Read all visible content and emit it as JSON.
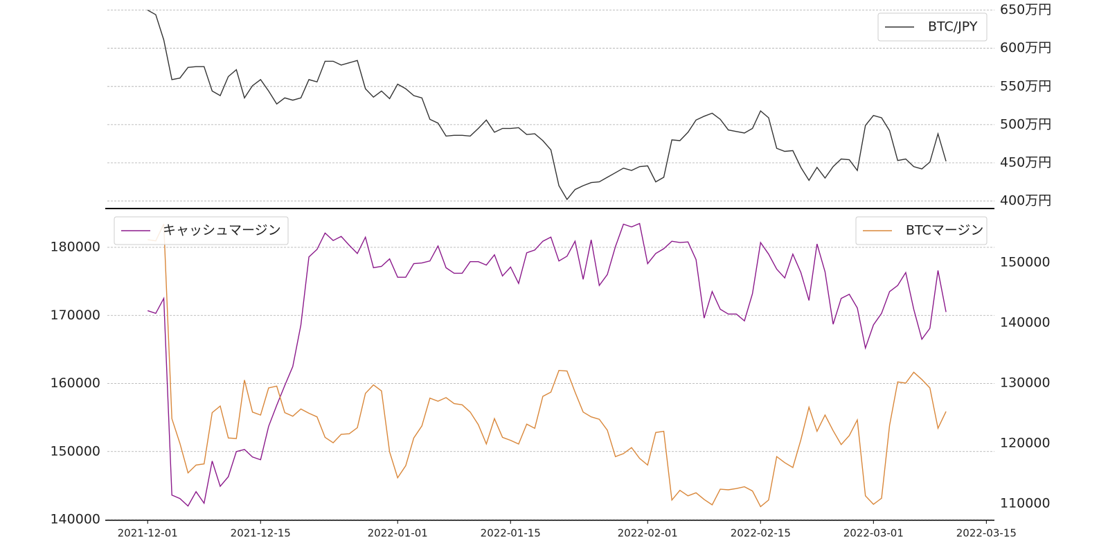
{
  "chart_data": [
    {
      "type": "line",
      "y_axis_side": "right",
      "grid": true,
      "legend": "upper right",
      "xlim": [
        "2021-11-26",
        "2022-03-16"
      ],
      "ylim": [
        391,
        656
      ],
      "yticks": [
        {
          "value": 400,
          "label": "400万円"
        },
        {
          "value": 450,
          "label": "450万円"
        },
        {
          "value": 500,
          "label": "500万円"
        },
        {
          "value": 550,
          "label": "550万円"
        },
        {
          "value": 600,
          "label": "600万円"
        },
        {
          "value": 650,
          "label": "650万円"
        }
      ],
      "x": [
        "2021-12-01",
        "2021-12-02",
        "2021-12-03",
        "2021-12-04",
        "2021-12-05",
        "2021-12-06",
        "2021-12-07",
        "2021-12-08",
        "2021-12-09",
        "2021-12-10",
        "2021-12-11",
        "2021-12-12",
        "2021-12-13",
        "2021-12-14",
        "2021-12-15",
        "2021-12-16",
        "2021-12-17",
        "2021-12-18",
        "2021-12-19",
        "2021-12-20",
        "2021-12-21",
        "2021-12-22",
        "2021-12-23",
        "2021-12-24",
        "2021-12-25",
        "2021-12-26",
        "2021-12-27",
        "2021-12-28",
        "2021-12-29",
        "2021-12-30",
        "2021-12-31",
        "2022-01-01",
        "2022-01-02",
        "2022-01-03",
        "2022-01-04",
        "2022-01-05",
        "2022-01-06",
        "2022-01-07",
        "2022-01-08",
        "2022-01-09",
        "2022-01-10",
        "2022-01-11",
        "2022-01-12",
        "2022-01-13",
        "2022-01-14",
        "2022-01-15",
        "2022-01-16",
        "2022-01-17",
        "2022-01-18",
        "2022-01-19",
        "2022-01-20",
        "2022-01-21",
        "2022-01-22",
        "2022-01-23",
        "2022-01-24",
        "2022-01-25",
        "2022-01-26",
        "2022-01-27",
        "2022-01-28",
        "2022-01-29",
        "2022-01-30",
        "2022-01-31",
        "2022-02-01",
        "2022-02-02",
        "2022-02-03",
        "2022-02-04",
        "2022-02-05",
        "2022-02-06",
        "2022-02-07",
        "2022-02-08",
        "2022-02-09",
        "2022-02-10",
        "2022-02-11",
        "2022-02-12",
        "2022-02-13",
        "2022-02-14",
        "2022-02-15",
        "2022-02-16",
        "2022-02-17",
        "2022-02-18",
        "2022-02-19",
        "2022-02-20",
        "2022-02-21",
        "2022-02-22",
        "2022-02-23",
        "2022-02-24",
        "2022-02-25",
        "2022-02-26",
        "2022-02-27",
        "2022-02-28",
        "2022-03-01",
        "2022-03-02",
        "2022-03-03",
        "2022-03-04",
        "2022-03-05",
        "2022-03-06",
        "2022-03-07",
        "2022-03-08",
        "2022-03-09",
        "2022-03-10"
      ],
      "series": [
        {
          "name": "BTC/JPY",
          "color": "#333333",
          "values": [
            650,
            644,
            611,
            559,
            561,
            575,
            576,
            576,
            544,
            538,
            563,
            572,
            535,
            551,
            559,
            544,
            527,
            535,
            532,
            535,
            559,
            556,
            583,
            583,
            578,
            581,
            584,
            547,
            536,
            544,
            534,
            553,
            547,
            538,
            535,
            507,
            502,
            485,
            486,
            486,
            485,
            495,
            506,
            490,
            495,
            495,
            496,
            487,
            488,
            479,
            467,
            420,
            402,
            415,
            420,
            424,
            425,
            431,
            437,
            443,
            440,
            445,
            446,
            425,
            431,
            480,
            479,
            490,
            506,
            511,
            515,
            507,
            493,
            491,
            489,
            495,
            518,
            509,
            469,
            465,
            466,
            444,
            427,
            444,
            430,
            445,
            455,
            454,
            440,
            499,
            512,
            509,
            492,
            453,
            455,
            445,
            442,
            451,
            488,
            452
          ]
        }
      ]
    },
    {
      "type": "line",
      "grid": true,
      "ytick_color": "#8b1a8b",
      "y2tick_color": "#d9873a",
      "xlim": [
        "2021-11-26",
        "2022-03-16"
      ],
      "ylim": [
        139900,
        185600
      ],
      "y2lim": [
        107240,
        158850
      ],
      "xticks": [
        "2021-12-01",
        "2021-12-15",
        "2022-01-01",
        "2022-01-15",
        "2022-02-01",
        "2022-02-15",
        "2022-03-01",
        "2022-03-15"
      ],
      "yticks": [
        140000,
        150000,
        160000,
        170000,
        180000
      ],
      "y2ticks": [
        110000,
        120000,
        130000,
        140000,
        150000
      ],
      "x": [
        "2021-12-01",
        "2021-12-02",
        "2021-12-03",
        "2021-12-04",
        "2021-12-05",
        "2021-12-06",
        "2021-12-07",
        "2021-12-08",
        "2021-12-09",
        "2021-12-10",
        "2021-12-11",
        "2021-12-12",
        "2021-12-13",
        "2021-12-14",
        "2021-12-15",
        "2021-12-16",
        "2021-12-17",
        "2021-12-18",
        "2021-12-19",
        "2021-12-20",
        "2021-12-21",
        "2021-12-22",
        "2021-12-23",
        "2021-12-24",
        "2021-12-25",
        "2021-12-26",
        "2021-12-27",
        "2021-12-28",
        "2021-12-29",
        "2021-12-30",
        "2021-12-31",
        "2022-01-01",
        "2022-01-02",
        "2022-01-03",
        "2022-01-04",
        "2022-01-05",
        "2022-01-06",
        "2022-01-07",
        "2022-01-08",
        "2022-01-09",
        "2022-01-10",
        "2022-01-11",
        "2022-01-12",
        "2022-01-13",
        "2022-01-14",
        "2022-01-15",
        "2022-01-16",
        "2022-01-17",
        "2022-01-18",
        "2022-01-19",
        "2022-01-20",
        "2022-01-21",
        "2022-01-22",
        "2022-01-23",
        "2022-01-24",
        "2022-01-25",
        "2022-01-26",
        "2022-01-27",
        "2022-01-28",
        "2022-01-29",
        "2022-01-30",
        "2022-01-31",
        "2022-02-01",
        "2022-02-02",
        "2022-02-03",
        "2022-02-04",
        "2022-02-05",
        "2022-02-06",
        "2022-02-07",
        "2022-02-08",
        "2022-02-09",
        "2022-02-10",
        "2022-02-11",
        "2022-02-12",
        "2022-02-13",
        "2022-02-14",
        "2022-02-15",
        "2022-02-16",
        "2022-02-17",
        "2022-02-18",
        "2022-02-19",
        "2022-02-20",
        "2022-02-21",
        "2022-02-22",
        "2022-02-23",
        "2022-02-24",
        "2022-02-25",
        "2022-02-26",
        "2022-02-27",
        "2022-02-28",
        "2022-03-01",
        "2022-03-02",
        "2022-03-03",
        "2022-03-04",
        "2022-03-05",
        "2022-03-06",
        "2022-03-07",
        "2022-03-08",
        "2022-03-09",
        "2022-03-10"
      ],
      "series": [
        {
          "name": "キャッシュマージン",
          "color": "#8b1a8b",
          "legend": "upper left",
          "values": [
            170700,
            170300,
            172500,
            143600,
            143100,
            142000,
            144100,
            142400,
            148600,
            144900,
            146300,
            150000,
            150300,
            149200,
            148800,
            153700,
            156800,
            159700,
            162500,
            168600,
            178600,
            179700,
            182100,
            181000,
            181600,
            180300,
            179100,
            181500,
            177000,
            177200,
            178300,
            175600,
            175600,
            177600,
            177700,
            178000,
            180200,
            177000,
            176200,
            176200,
            177900,
            177900,
            177400,
            178900,
            175800,
            177100,
            174700,
            179200,
            179600,
            180900,
            181500,
            178000,
            178700,
            180900,
            175300,
            181100,
            174400,
            176000,
            180100,
            183400,
            183000,
            183500,
            177600,
            179100,
            179800,
            180900,
            180700,
            180800,
            178200,
            169600,
            173500,
            170900,
            170200,
            170200,
            169200,
            173200,
            180700,
            179000,
            176800,
            175500,
            179000,
            176300,
            172200,
            180500,
            176400,
            168700,
            172500,
            173100,
            171100,
            165200,
            168600,
            170300,
            173500,
            174400,
            176300,
            170900,
            166500,
            168100,
            176600,
            170500
          ]
        },
        {
          "name": "BTCマージン",
          "color": "#d9873a",
          "axis": "y2",
          "legend": "upper right",
          "values": [
            153800,
            153600,
            156400,
            124100,
            120000,
            115100,
            116400,
            116600,
            125100,
            126200,
            120900,
            120800,
            130500,
            125200,
            124700,
            129200,
            129500,
            125100,
            124500,
            125700,
            125000,
            124400,
            121000,
            120100,
            121500,
            121600,
            122600,
            128300,
            129700,
            128700,
            118600,
            114300,
            116300,
            120900,
            122900,
            127500,
            127000,
            127600,
            126600,
            126400,
            125200,
            123100,
            119900,
            124100,
            121000,
            120500,
            119900,
            123200,
            122500,
            127800,
            128500,
            132100,
            132000,
            128500,
            125200,
            124400,
            124000,
            122200,
            117800,
            118300,
            119300,
            117500,
            116400,
            121800,
            122000,
            110600,
            112200,
            111300,
            111800,
            110700,
            109800,
            112400,
            112300,
            112500,
            112800,
            112100,
            109500,
            110600,
            117800,
            116800,
            116000,
            120600,
            126000,
            122000,
            124700,
            122100,
            119800,
            121300,
            123900,
            111300,
            109900,
            110900,
            123000,
            130200,
            130000,
            131800,
            130600,
            129200,
            122500,
            125300
          ]
        }
      ]
    }
  ]
}
